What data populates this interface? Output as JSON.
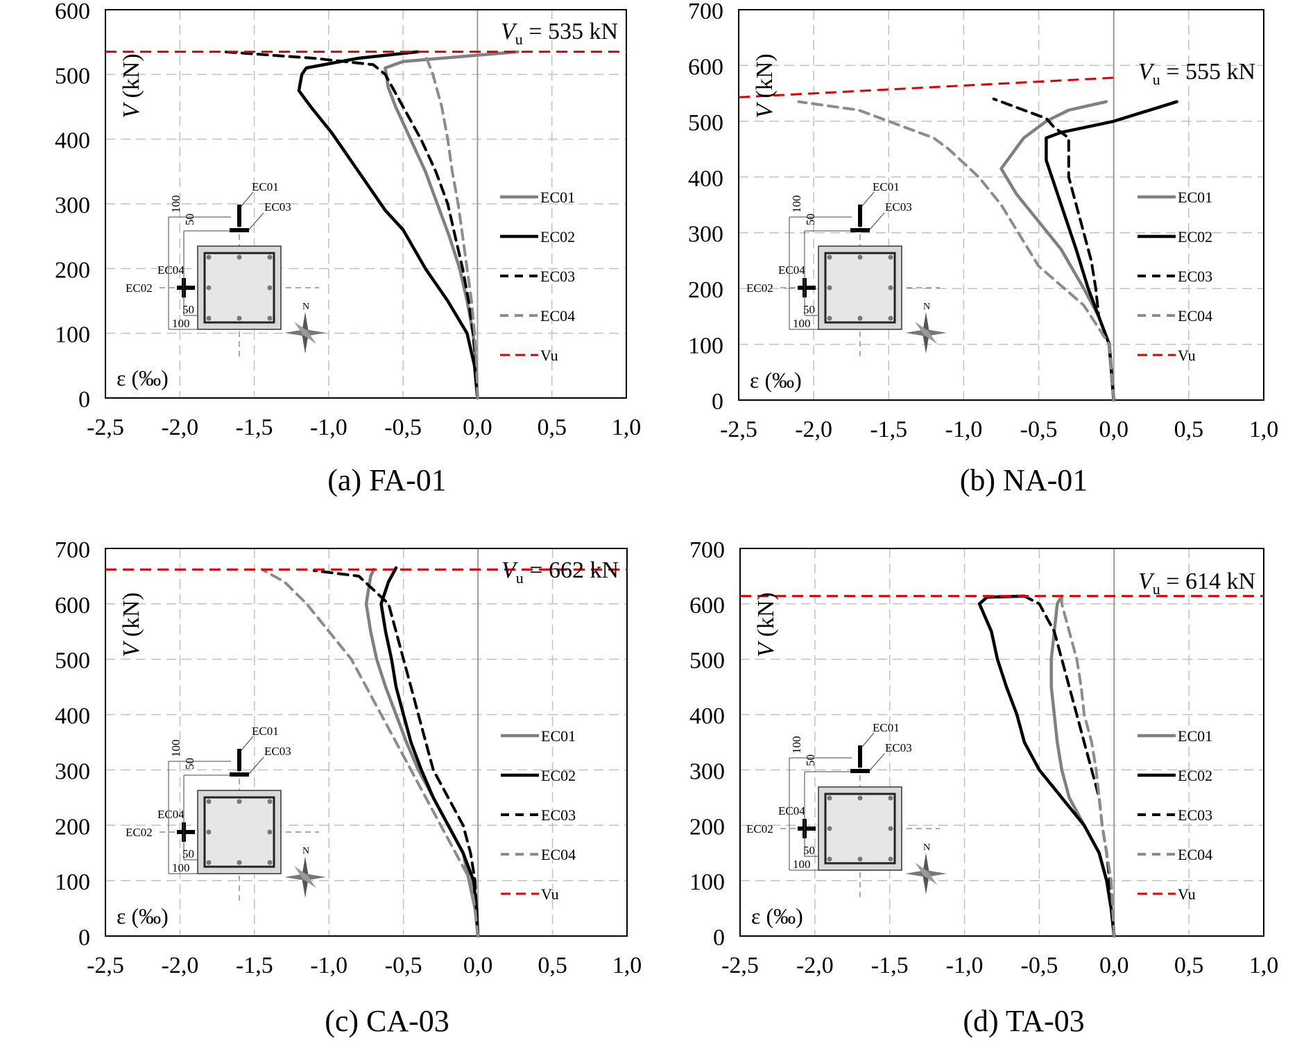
{
  "chart_data": [
    {
      "type": "line",
      "caption": "(a) FA-01",
      "vu_label": "V",
      "vu_sub": "u",
      "vu_value": "= 535 kN",
      "ylabel": "V (kN)",
      "xlabel": "ε (‰)",
      "xlim": [
        -2.5,
        1.0
      ],
      "ylim": [
        0,
        600
      ],
      "xticks": [
        "-2,5",
        "-2,0",
        "-1,5",
        "-1,0",
        "-0,5",
        "0,0",
        "0,5",
        "1,0"
      ],
      "yticks": [
        "0",
        "100",
        "200",
        "300",
        "400",
        "500",
        "600"
      ],
      "vu": 535,
      "series": [
        {
          "name": "EC01",
          "points": [
            [
              0,
              0
            ],
            [
              -0.01,
              50
            ],
            [
              -0.03,
              100
            ],
            [
              -0.07,
              150
            ],
            [
              -0.12,
              200
            ],
            [
              -0.19,
              250
            ],
            [
              -0.27,
              300
            ],
            [
              -0.35,
              350
            ],
            [
              -0.45,
              400
            ],
            [
              -0.55,
              450
            ],
            [
              -0.6,
              480
            ],
            [
              -0.62,
              510
            ],
            [
              -0.5,
              520
            ],
            [
              0.27,
              535
            ]
          ]
        },
        {
          "name": "EC02",
          "points": [
            [
              0,
              0
            ],
            [
              -0.02,
              50
            ],
            [
              -0.07,
              100
            ],
            [
              -0.2,
              150
            ],
            [
              -0.35,
              200
            ],
            [
              -0.5,
              260
            ],
            [
              -0.62,
              290
            ],
            [
              -0.8,
              350
            ],
            [
              -0.98,
              410
            ],
            [
              -1.12,
              450
            ],
            [
              -1.2,
              475
            ],
            [
              -1.18,
              500
            ],
            [
              -1.15,
              510
            ],
            [
              -0.8,
              525
            ],
            [
              -0.4,
              535
            ]
          ]
        },
        {
          "name": "EC03",
          "points": [
            [
              0,
              0
            ],
            [
              -0.01,
              50
            ],
            [
              -0.03,
              100
            ],
            [
              -0.06,
              150
            ],
            [
              -0.1,
              200
            ],
            [
              -0.15,
              250
            ],
            [
              -0.2,
              300
            ],
            [
              -0.28,
              350
            ],
            [
              -0.38,
              400
            ],
            [
              -0.5,
              450
            ],
            [
              -0.62,
              500
            ],
            [
              -0.7,
              515
            ],
            [
              -1.1,
              525
            ],
            [
              -1.7,
              535
            ]
          ]
        },
        {
          "name": "EC04",
          "points": [
            [
              0,
              0
            ],
            [
              -0.005,
              50
            ],
            [
              -0.02,
              100
            ],
            [
              -0.04,
              150
            ],
            [
              -0.07,
              200
            ],
            [
              -0.1,
              250
            ],
            [
              -0.13,
              300
            ],
            [
              -0.17,
              350
            ],
            [
              -0.2,
              400
            ],
            [
              -0.24,
              450
            ],
            [
              -0.3,
              500
            ],
            [
              -0.35,
              530
            ]
          ]
        }
      ]
    },
    {
      "type": "line",
      "caption": "(b) NA-01",
      "vu_label": "V",
      "vu_sub": "u",
      "vu_value": "= 555 kN",
      "ylabel": "V (kN)",
      "xlabel": "ε (‰)",
      "xlim": [
        -2.5,
        1.0
      ],
      "ylim": [
        0,
        700
      ],
      "xticks": [
        "-2,5",
        "-2,0",
        "-1,5",
        "-1,0",
        "-0,5",
        "0,0",
        "0,5",
        "1,0"
      ],
      "yticks": [
        "0",
        "100",
        "200",
        "300",
        "400",
        "500",
        "600",
        "700"
      ],
      "vu_line": [
        [
          -2.5,
          543
        ],
        [
          0.0,
          578
        ]
      ],
      "series": [
        {
          "name": "EC01",
          "points": [
            [
              0,
              0
            ],
            [
              -0.03,
              100
            ],
            [
              -0.1,
              150
            ],
            [
              -0.2,
              200
            ],
            [
              -0.35,
              270
            ],
            [
              -0.5,
              320
            ],
            [
              -0.65,
              370
            ],
            [
              -0.75,
              415
            ],
            [
              -0.6,
              470
            ],
            [
              -0.45,
              500
            ],
            [
              -0.3,
              520
            ],
            [
              -0.05,
              535
            ]
          ]
        },
        {
          "name": "EC02",
          "points": [
            [
              0,
              0
            ],
            [
              -0.03,
              100
            ],
            [
              -0.1,
              150
            ],
            [
              -0.17,
              200
            ],
            [
              -0.25,
              270
            ],
            [
              -0.35,
              350
            ],
            [
              -0.45,
              430
            ],
            [
              -0.45,
              470
            ],
            [
              -0.35,
              480
            ],
            [
              0.0,
              500
            ],
            [
              0.42,
              535
            ]
          ]
        },
        {
          "name": "EC03",
          "points": [
            [
              0,
              0
            ],
            [
              -0.03,
              100
            ],
            [
              -0.1,
              150
            ],
            [
              -0.12,
              200
            ],
            [
              -0.15,
              250
            ],
            [
              -0.2,
              300
            ],
            [
              -0.3,
              400
            ],
            [
              -0.3,
              470
            ],
            [
              -0.4,
              490
            ],
            [
              -0.45,
              505
            ],
            [
              -0.8,
              540
            ]
          ]
        },
        {
          "name": "EC04",
          "points": [
            [
              0,
              0
            ],
            [
              -0.03,
              100
            ],
            [
              -0.2,
              170
            ],
            [
              -0.5,
              240
            ],
            [
              -0.75,
              350
            ],
            [
              -0.9,
              400
            ],
            [
              -1.1,
              450
            ],
            [
              -1.2,
              470
            ],
            [
              -1.7,
              520
            ],
            [
              -2.1,
              535
            ]
          ]
        }
      ]
    },
    {
      "type": "line",
      "caption": "(c) CA-03",
      "vu_label": "V",
      "vu_sub": "u",
      "vu_value": "= 662 kN",
      "ylabel": "V (kN)",
      "xlabel": "ε (‰)",
      "xlim": [
        -2.5,
        1.0
      ],
      "ylim": [
        0,
        700
      ],
      "xticks": [
        "-2,5",
        "-2,0",
        "-1,5",
        "-1,0",
        "-0,5",
        "0,0",
        "0,5",
        "1,0"
      ],
      "yticks": [
        "0",
        "100",
        "200",
        "300",
        "400",
        "500",
        "600",
        "700"
      ],
      "vu": 662,
      "series": [
        {
          "name": "EC01",
          "points": [
            [
              0,
              0
            ],
            [
              -0.02,
              50
            ],
            [
              -0.06,
              100
            ],
            [
              -0.1,
              150
            ],
            [
              -0.2,
              200
            ],
            [
              -0.3,
              250
            ],
            [
              -0.4,
              300
            ],
            [
              -0.48,
              350
            ],
            [
              -0.55,
              400
            ],
            [
              -0.62,
              450
            ],
            [
              -0.68,
              500
            ],
            [
              -0.72,
              550
            ],
            [
              -0.75,
              600
            ],
            [
              -0.72,
              650
            ],
            [
              -0.7,
              662
            ]
          ]
        },
        {
          "name": "EC02",
          "points": [
            [
              0,
              0
            ],
            [
              -0.01,
              50
            ],
            [
              -0.03,
              100
            ],
            [
              -0.1,
              150
            ],
            [
              -0.2,
              200
            ],
            [
              -0.3,
              250
            ],
            [
              -0.38,
              300
            ],
            [
              -0.45,
              350
            ],
            [
              -0.5,
              400
            ],
            [
              -0.55,
              450
            ],
            [
              -0.58,
              500
            ],
            [
              -0.62,
              550
            ],
            [
              -0.65,
              600
            ],
            [
              -0.6,
              640
            ],
            [
              -0.55,
              665
            ]
          ]
        },
        {
          "name": "EC03",
          "points": [
            [
              0,
              0
            ],
            [
              -0.01,
              50
            ],
            [
              -0.02,
              100
            ],
            [
              -0.05,
              150
            ],
            [
              -0.1,
              200
            ],
            [
              -0.2,
              250
            ],
            [
              -0.3,
              300
            ],
            [
              -0.35,
              350
            ],
            [
              -0.4,
              400
            ],
            [
              -0.45,
              450
            ],
            [
              -0.5,
              500
            ],
            [
              -0.55,
              550
            ],
            [
              -0.6,
              600
            ],
            [
              -0.8,
              650
            ],
            [
              -1.1,
              660
            ]
          ]
        },
        {
          "name": "EC04",
          "points": [
            [
              0,
              0
            ],
            [
              -0.02,
              50
            ],
            [
              -0.05,
              100
            ],
            [
              -0.15,
              150
            ],
            [
              -0.25,
              200
            ],
            [
              -0.35,
              250
            ],
            [
              -0.45,
              300
            ],
            [
              -0.55,
              350
            ],
            [
              -0.65,
              400
            ],
            [
              -0.75,
              450
            ],
            [
              -0.85,
              500
            ],
            [
              -1.0,
              550
            ],
            [
              -1.15,
              600
            ],
            [
              -1.3,
              640
            ],
            [
              -1.45,
              662
            ]
          ]
        }
      ]
    },
    {
      "type": "line",
      "caption": "(d) TA-03",
      "vu_label": "V",
      "vu_sub": "u",
      "vu_value": "= 614 kN",
      "ylabel": "V (kN)",
      "xlabel": "ε (‰)",
      "xlim": [
        -2.5,
        1.0
      ],
      "ylim": [
        0,
        700
      ],
      "xticks": [
        "-2,5",
        "-2,0",
        "-1,5",
        "-1,0",
        "-0,5",
        "0,0",
        "0,5",
        "1,0"
      ],
      "yticks": [
        "0",
        "100",
        "200",
        "300",
        "400",
        "500",
        "600",
        "700"
      ],
      "vu": 614,
      "series": [
        {
          "name": "EC01",
          "points": [
            [
              0,
              0
            ],
            [
              -0.02,
              50
            ],
            [
              -0.05,
              100
            ],
            [
              -0.1,
              150
            ],
            [
              -0.2,
              200
            ],
            [
              -0.3,
              250
            ],
            [
              -0.35,
              300
            ],
            [
              -0.38,
              350
            ],
            [
              -0.4,
              400
            ],
            [
              -0.42,
              450
            ],
            [
              -0.42,
              500
            ],
            [
              -0.4,
              550
            ],
            [
              -0.38,
              600
            ],
            [
              -0.35,
              614
            ]
          ]
        },
        {
          "name": "EC02",
          "points": [
            [
              0,
              0
            ],
            [
              -0.02,
              50
            ],
            [
              -0.05,
              100
            ],
            [
              -0.1,
              150
            ],
            [
              -0.2,
              200
            ],
            [
              -0.35,
              250
            ],
            [
              -0.5,
              300
            ],
            [
              -0.6,
              350
            ],
            [
              -0.65,
              400
            ],
            [
              -0.72,
              450
            ],
            [
              -0.78,
              500
            ],
            [
              -0.82,
              550
            ],
            [
              -0.9,
              600
            ],
            [
              -0.85,
              612
            ],
            [
              -0.6,
              614
            ]
          ]
        },
        {
          "name": "EC03",
          "points": [
            [
              0,
              0
            ],
            [
              -0.01,
              50
            ],
            [
              -0.03,
              100
            ],
            [
              -0.05,
              150
            ],
            [
              -0.08,
              200
            ],
            [
              -0.1,
              250
            ],
            [
              -0.15,
              300
            ],
            [
              -0.2,
              350
            ],
            [
              -0.25,
              400
            ],
            [
              -0.3,
              450
            ],
            [
              -0.35,
              500
            ],
            [
              -0.4,
              550
            ],
            [
              -0.5,
              600
            ],
            [
              -0.6,
              614
            ]
          ]
        },
        {
          "name": "EC04",
          "points": [
            [
              0,
              0
            ],
            [
              -0.01,
              50
            ],
            [
              -0.02,
              100
            ],
            [
              -0.05,
              150
            ],
            [
              -0.08,
              200
            ],
            [
              -0.1,
              250
            ],
            [
              -0.12,
              300
            ],
            [
              -0.15,
              350
            ],
            [
              -0.2,
              400
            ],
            [
              -0.22,
              450
            ],
            [
              -0.25,
              500
            ],
            [
              -0.3,
              550
            ],
            [
              -0.35,
              600
            ],
            [
              -0.35,
              614
            ]
          ]
        }
      ]
    }
  ],
  "legend": [
    "EC01",
    "EC02",
    "EC03",
    "EC04",
    "Vu"
  ],
  "colors": {
    "EC01": "#808080",
    "EC02": "#000000",
    "EC03": "#000000",
    "EC04": "#8c8c8c",
    "Vu": "#e00000",
    "grid": "#c0c0c0",
    "zero_line": "#9a9a9a"
  },
  "inset": {
    "ec01": "EC01",
    "ec02": "EC02",
    "ec03": "EC03",
    "ec04": "EC04",
    "dim_100": "100",
    "dim_50": "50",
    "north": "N"
  }
}
